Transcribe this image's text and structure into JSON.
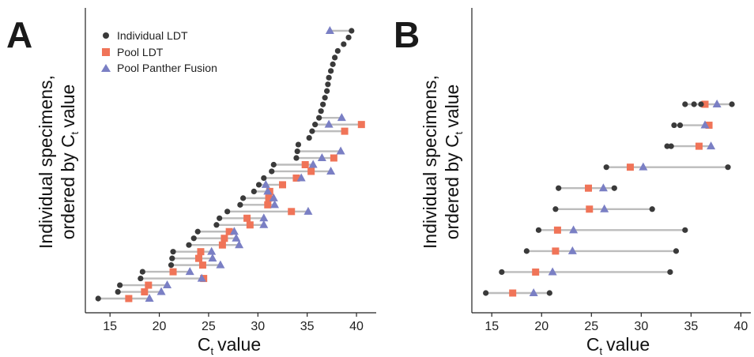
{
  "chart_data": [
    {
      "panel": "A",
      "type": "scatter",
      "xlabel": "C",
      "xlabel_sub": "t",
      "xlabel_suffix": "value",
      "ylabel_line1": "Individual specimens,",
      "ylabel_line2": "ordered by C",
      "ylabel_sub": "t",
      "ylabel_suffix": "value",
      "xlim": [
        12.5,
        42
      ],
      "xticks": [
        15,
        20,
        25,
        30,
        35,
        40
      ],
      "grid": false,
      "legend": {
        "placement": "top-left",
        "entries": [
          "Individual LDT",
          "Pool LDT",
          "Pool Panther Fusion"
        ]
      },
      "series_colors": {
        "individual": "#3a3a3a",
        "pool_ldt": "#f07458",
        "pool_pf": "#7a7fc4",
        "link": "#bcbcbc"
      },
      "rows": [
        {
          "individual": 13.8,
          "pool_ldt": 16.9,
          "pool_pf": 19.0
        },
        {
          "individual": 15.8,
          "pool_ldt": 18.5,
          "pool_pf": 20.2
        },
        {
          "individual": 16.0,
          "pool_ldt": 18.9,
          "pool_pf": 20.8
        },
        {
          "individual": 18.1,
          "pool_ldt": 24.5,
          "pool_pf": 24.3
        },
        {
          "individual": 18.3,
          "pool_ldt": 21.4,
          "pool_pf": 23.1
        },
        {
          "individual": 21.2,
          "pool_ldt": 24.4,
          "pool_pf": 26.2
        },
        {
          "individual": 21.3,
          "pool_ldt": 24.0,
          "pool_pf": 25.4
        },
        {
          "individual": 21.4,
          "pool_ldt": 24.2,
          "pool_pf": 25.3
        },
        {
          "individual": 23.0,
          "pool_ldt": 26.4,
          "pool_pf": 28.1
        },
        {
          "individual": 23.5,
          "pool_ldt": 26.6,
          "pool_pf": 27.8
        },
        {
          "individual": 23.9,
          "pool_ldt": 27.1,
          "pool_pf": 27.6
        },
        {
          "individual": 25.8,
          "pool_ldt": 29.2,
          "pool_pf": 30.6
        },
        {
          "individual": 26.1,
          "pool_ldt": 28.9,
          "pool_pf": 30.6
        },
        {
          "individual": 26.9,
          "pool_ldt": 33.4,
          "pool_pf": 35.1
        },
        {
          "individual": 28.2,
          "pool_ldt": 31.0,
          "pool_pf": 31.7
        },
        {
          "individual": 28.5,
          "pool_ldt": 31.1,
          "pool_pf": 31.6
        },
        {
          "individual": 29.6,
          "pool_ldt": 31.2,
          "pool_pf": 31.0
        },
        {
          "individual": 30.1,
          "pool_ldt": 32.5,
          "pool_pf": 30.8
        },
        {
          "individual": 30.6,
          "pool_ldt": 33.9,
          "pool_pf": 34.4
        },
        {
          "individual": 31.4,
          "pool_ldt": 35.4,
          "pool_pf": 37.4
        },
        {
          "individual": 31.6,
          "pool_ldt": 34.8,
          "pool_pf": 35.6
        },
        {
          "individual": 33.9,
          "pool_ldt": 37.7,
          "pool_pf": 36.5
        },
        {
          "individual": 34.0,
          "pool_ldt": null,
          "pool_pf": 38.4
        },
        {
          "individual": 34.1,
          "pool_ldt": null,
          "pool_pf": null
        },
        {
          "individual": 35.2,
          "pool_ldt": null,
          "pool_pf": null
        },
        {
          "individual": 35.5,
          "pool_ldt": 38.8,
          "pool_pf": null
        },
        {
          "individual": 35.8,
          "pool_ldt": 40.5,
          "pool_pf": 37.2
        },
        {
          "individual": 36.2,
          "pool_ldt": null,
          "pool_pf": 38.5
        },
        {
          "individual": 36.4,
          "pool_ldt": null,
          "pool_pf": null
        },
        {
          "individual": 36.6,
          "pool_ldt": null,
          "pool_pf": null
        },
        {
          "individual": 36.8,
          "pool_ldt": null,
          "pool_pf": null
        },
        {
          "individual": 37.0,
          "pool_ldt": null,
          "pool_pf": null
        },
        {
          "individual": 37.1,
          "pool_ldt": null,
          "pool_pf": null
        },
        {
          "individual": 37.2,
          "pool_ldt": null,
          "pool_pf": null
        },
        {
          "individual": 37.4,
          "pool_ldt": null,
          "pool_pf": null
        },
        {
          "individual": 37.6,
          "pool_ldt": null,
          "pool_pf": null
        },
        {
          "individual": 37.8,
          "pool_ldt": null,
          "pool_pf": null
        },
        {
          "individual": 38.1,
          "pool_ldt": null,
          "pool_pf": null
        },
        {
          "individual": 38.7,
          "pool_ldt": null,
          "pool_pf": null
        },
        {
          "individual": 39.2,
          "pool_ldt": null,
          "pool_pf": null
        },
        {
          "individual": 39.5,
          "pool_ldt": null,
          "pool_pf": 37.3
        }
      ]
    },
    {
      "panel": "B",
      "type": "scatter",
      "xlabel": "C",
      "xlabel_sub": "t",
      "xlabel_suffix": "value",
      "ylabel_line1": "Individual specimens,",
      "ylabel_line2": "ordered by C",
      "ylabel_sub": "t",
      "ylabel_suffix": "value",
      "xlim": [
        13,
        41
      ],
      "xticks": [
        15,
        20,
        25,
        30,
        35,
        40
      ],
      "grid": false,
      "legend": null,
      "series_colors": {
        "individual": "#3a3a3a",
        "pool_ldt": "#f07458",
        "pool_pf": "#7a7fc4",
        "link": "#bcbcbc"
      },
      "rows": [
        {
          "individuals": [
            14.4,
            20.8
          ],
          "pool_ldt": 17.1,
          "pool_pf": 19.2
        },
        {
          "individuals": [
            16.0,
            32.9
          ],
          "pool_ldt": 19.4,
          "pool_pf": 21.1
        },
        {
          "individuals": [
            18.5,
            33.5
          ],
          "pool_ldt": 21.4,
          "pool_pf": 23.1
        },
        {
          "individuals": [
            19.7,
            34.4
          ],
          "pool_ldt": 21.6,
          "pool_pf": 23.2
        },
        {
          "individuals": [
            21.4,
            31.1
          ],
          "pool_ldt": 24.8,
          "pool_pf": 26.3
        },
        {
          "individuals": [
            21.7,
            27.3
          ],
          "pool_ldt": 24.7,
          "pool_pf": 26.2
        },
        {
          "individuals": [
            26.5,
            38.7
          ],
          "pool_ldt": 28.9,
          "pool_pf": 30.2
        },
        {
          "individuals": [
            32.6,
            33.0
          ],
          "pool_ldt": 35.8,
          "pool_pf": 37.0
        },
        {
          "individuals": [
            33.3,
            33.9
          ],
          "pool_ldt": 36.8,
          "pool_pf": 36.4
        },
        {
          "individuals": [
            34.4,
            35.3,
            36.0,
            39.1
          ],
          "pool_ldt": 36.4,
          "pool_pf": 37.6
        }
      ]
    }
  ]
}
